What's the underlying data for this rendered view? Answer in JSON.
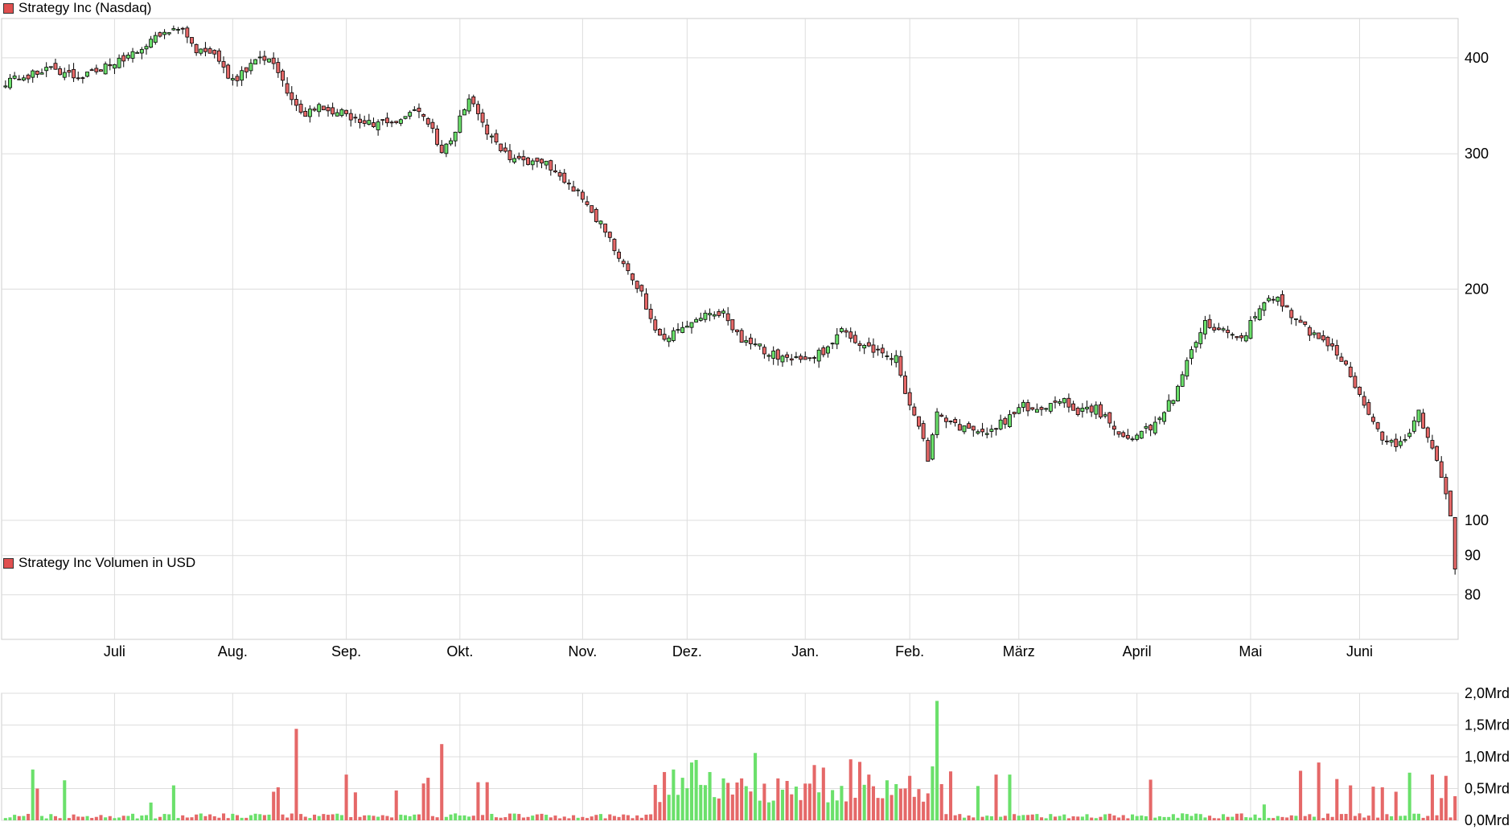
{
  "colors": {
    "up": "#6be06b",
    "down": "#e56868",
    "grid": "#dddddd",
    "wick": "#000000",
    "legend_box": "#e05050"
  },
  "chart_data": [
    {
      "type": "candlestick",
      "title": "Strategy Inc (Nasdaq)",
      "y_scale": "log",
      "ylim": [
        70,
        450
      ],
      "y_ticks": [
        {
          "value": 400,
          "label": "400"
        },
        {
          "value": 300,
          "label": "300"
        },
        {
          "value": 200,
          "label": "200"
        },
        {
          "value": 100,
          "label": "100"
        },
        {
          "value": 90,
          "label": "90"
        },
        {
          "value": 80,
          "label": "80"
        }
      ],
      "x_ticks": [
        {
          "index": 24,
          "label": "Juli"
        },
        {
          "index": 50,
          "label": "Aug."
        },
        {
          "index": 75,
          "label": "Sep."
        },
        {
          "index": 100,
          "label": "Okt."
        },
        {
          "index": 127,
          "label": "Nov."
        },
        {
          "index": 150,
          "label": "Dez."
        },
        {
          "index": 176,
          "label": "Jan."
        },
        {
          "index": 199,
          "label": "Feb."
        },
        {
          "index": 223,
          "label": "März"
        },
        {
          "index": 249,
          "label": "April"
        },
        {
          "index": 274,
          "label": "Mai"
        },
        {
          "index": 298,
          "label": "Juni"
        }
      ],
      "grid": true,
      "close_points": [
        [
          0,
          372
        ],
        [
          5,
          380
        ],
        [
          10,
          388
        ],
        [
          15,
          378
        ],
        [
          20,
          385
        ],
        [
          25,
          395
        ],
        [
          30,
          412
        ],
        [
          35,
          432
        ],
        [
          38,
          440
        ],
        [
          42,
          410
        ],
        [
          47,
          398
        ],
        [
          50,
          372
        ],
        [
          55,
          395
        ],
        [
          58,
          402
        ],
        [
          62,
          360
        ],
        [
          65,
          338
        ],
        [
          70,
          345
        ],
        [
          75,
          337
        ],
        [
          80,
          328
        ],
        [
          85,
          330
        ],
        [
          90,
          345
        ],
        [
          94,
          322
        ],
        [
          96,
          300
        ],
        [
          99,
          323
        ],
        [
          102,
          355
        ],
        [
          106,
          322
        ],
        [
          110,
          300
        ],
        [
          114,
          292
        ],
        [
          119,
          290
        ],
        [
          124,
          274
        ],
        [
          128,
          258
        ],
        [
          132,
          238
        ],
        [
          136,
          215
        ],
        [
          140,
          198
        ],
        [
          143,
          176
        ],
        [
          146,
          173
        ],
        [
          150,
          181
        ],
        [
          154,
          187
        ],
        [
          158,
          187
        ],
        [
          162,
          170
        ],
        [
          166,
          168
        ],
        [
          170,
          163
        ],
        [
          175,
          163
        ],
        [
          180,
          165
        ],
        [
          184,
          177
        ],
        [
          188,
          168
        ],
        [
          192,
          166
        ],
        [
          196,
          162
        ],
        [
          198,
          148
        ],
        [
          201,
          133
        ],
        [
          203,
          120
        ],
        [
          205,
          138
        ],
        [
          208,
          133
        ],
        [
          212,
          131
        ],
        [
          216,
          129
        ],
        [
          220,
          135
        ],
        [
          224,
          141
        ],
        [
          228,
          139
        ],
        [
          232,
          144
        ],
        [
          236,
          139
        ],
        [
          240,
          140
        ],
        [
          244,
          132
        ],
        [
          247,
          128
        ],
        [
          252,
          132
        ],
        [
          257,
          145
        ],
        [
          260,
          160
        ],
        [
          264,
          180
        ],
        [
          268,
          176
        ],
        [
          272,
          171
        ],
        [
          276,
          190
        ],
        [
          280,
          195
        ],
        [
          284,
          182
        ],
        [
          288,
          174
        ],
        [
          292,
          168
        ],
        [
          296,
          155
        ],
        [
          300,
          136
        ],
        [
          304,
          126
        ],
        [
          308,
          126
        ],
        [
          311,
          139
        ],
        [
          314,
          123
        ],
        [
          316,
          115
        ],
        [
          318,
          102
        ],
        [
          319,
          87
        ]
      ],
      "volume_chart": {
        "title": "Strategy Inc Volumen in USD",
        "unit": "Mrd",
        "ylim": [
          0,
          2.0
        ],
        "y_ticks": [
          {
            "value": 2.0,
            "label": "2,0Mrd"
          },
          {
            "value": 1.5,
            "label": "1,5Mrd"
          },
          {
            "value": 1.0,
            "label": "1,0Mrd"
          },
          {
            "value": 0.5,
            "label": "0,5Mrd"
          },
          {
            "value": 0.0,
            "label": "0,0Mrd"
          }
        ],
        "spikes": [
          {
            "index": 6,
            "value": 0.8
          },
          {
            "index": 7,
            "value": 0.5
          },
          {
            "index": 13,
            "value": 0.63
          },
          {
            "index": 32,
            "value": 0.28
          },
          {
            "index": 37,
            "value": 0.55
          },
          {
            "index": 59,
            "value": 0.45
          },
          {
            "index": 60,
            "value": 0.52
          },
          {
            "index": 64,
            "value": 1.44
          },
          {
            "index": 75,
            "value": 0.72
          },
          {
            "index": 77,
            "value": 0.44
          },
          {
            "index": 86,
            "value": 0.47
          },
          {
            "index": 92,
            "value": 0.58
          },
          {
            "index": 93,
            "value": 0.67
          },
          {
            "index": 96,
            "value": 1.2
          },
          {
            "index": 104,
            "value": 0.6
          },
          {
            "index": 106,
            "value": 0.6
          },
          {
            "index": 145,
            "value": 0.76
          },
          {
            "index": 147,
            "value": 0.8
          },
          {
            "index": 149,
            "value": 0.67
          },
          {
            "index": 151,
            "value": 0.91
          },
          {
            "index": 152,
            "value": 0.95
          },
          {
            "index": 155,
            "value": 0.76
          },
          {
            "index": 158,
            "value": 0.66
          },
          {
            "index": 162,
            "value": 0.66
          },
          {
            "index": 165,
            "value": 1.06
          },
          {
            "index": 170,
            "value": 0.66
          },
          {
            "index": 172,
            "value": 0.62
          },
          {
            "index": 178,
            "value": 0.87
          },
          {
            "index": 180,
            "value": 0.83
          },
          {
            "index": 186,
            "value": 0.96
          },
          {
            "index": 188,
            "value": 0.92
          },
          {
            "index": 190,
            "value": 0.72
          },
          {
            "index": 194,
            "value": 0.63
          },
          {
            "index": 196,
            "value": 0.57
          },
          {
            "index": 199,
            "value": 0.7
          },
          {
            "index": 204,
            "value": 0.85
          },
          {
            "index": 205,
            "value": 1.88
          },
          {
            "index": 206,
            "value": 0.57
          },
          {
            "index": 208,
            "value": 0.77
          },
          {
            "index": 214,
            "value": 0.54
          },
          {
            "index": 218,
            "value": 0.72
          },
          {
            "index": 221,
            "value": 0.72
          },
          {
            "index": 252,
            "value": 0.64
          },
          {
            "index": 277,
            "value": 0.25
          },
          {
            "index": 285,
            "value": 0.78
          },
          {
            "index": 289,
            "value": 0.91
          },
          {
            "index": 293,
            "value": 0.65
          },
          {
            "index": 296,
            "value": 0.55
          },
          {
            "index": 301,
            "value": 0.53
          },
          {
            "index": 303,
            "value": 0.52
          },
          {
            "index": 306,
            "value": 0.45
          },
          {
            "index": 309,
            "value": 0.75
          },
          {
            "index": 314,
            "value": 0.72
          },
          {
            "index": 316,
            "value": 0.35
          },
          {
            "index": 317,
            "value": 0.7
          },
          {
            "index": 319,
            "value": 0.38
          }
        ]
      }
    }
  ]
}
